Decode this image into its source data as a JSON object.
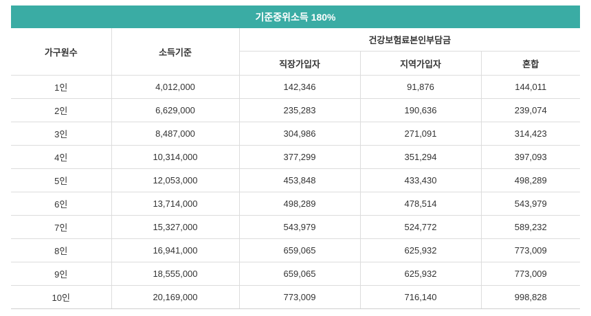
{
  "accent_color": "#3aaca4",
  "table": {
    "title": "기준중위소득 180%",
    "headers": {
      "household": "가구원수",
      "income": "소득기준",
      "premium_group": "건강보험료본인부담금",
      "employee": "직장가입자",
      "regional": "지역가입자",
      "mixed": "혼합"
    },
    "rows": [
      {
        "household": "1인",
        "income": "4,012,000",
        "employee": "142,346",
        "regional": "91,876",
        "mixed": "144,011"
      },
      {
        "household": "2인",
        "income": "6,629,000",
        "employee": "235,283",
        "regional": "190,636",
        "mixed": "239,074"
      },
      {
        "household": "3인",
        "income": "8,487,000",
        "employee": "304,986",
        "regional": "271,091",
        "mixed": "314,423"
      },
      {
        "household": "4인",
        "income": "10,314,000",
        "employee": "377,299",
        "regional": "351,294",
        "mixed": "397,093"
      },
      {
        "household": "5인",
        "income": "12,053,000",
        "employee": "453,848",
        "regional": "433,430",
        "mixed": "498,289"
      },
      {
        "household": "6인",
        "income": "13,714,000",
        "employee": "498,289",
        "regional": "478,514",
        "mixed": "543,979"
      },
      {
        "household": "7인",
        "income": "15,327,000",
        "employee": "543,979",
        "regional": "524,772",
        "mixed": "589,232"
      },
      {
        "household": "8인",
        "income": "16,941,000",
        "employee": "659,065",
        "regional": "625,932",
        "mixed": "773,009"
      },
      {
        "household": "9인",
        "income": "18,555,000",
        "employee": "659,065",
        "regional": "625,932",
        "mixed": "773,009"
      },
      {
        "household": "10인",
        "income": "20,169,000",
        "employee": "773,009",
        "regional": "716,140",
        "mixed": "998,828"
      }
    ]
  }
}
